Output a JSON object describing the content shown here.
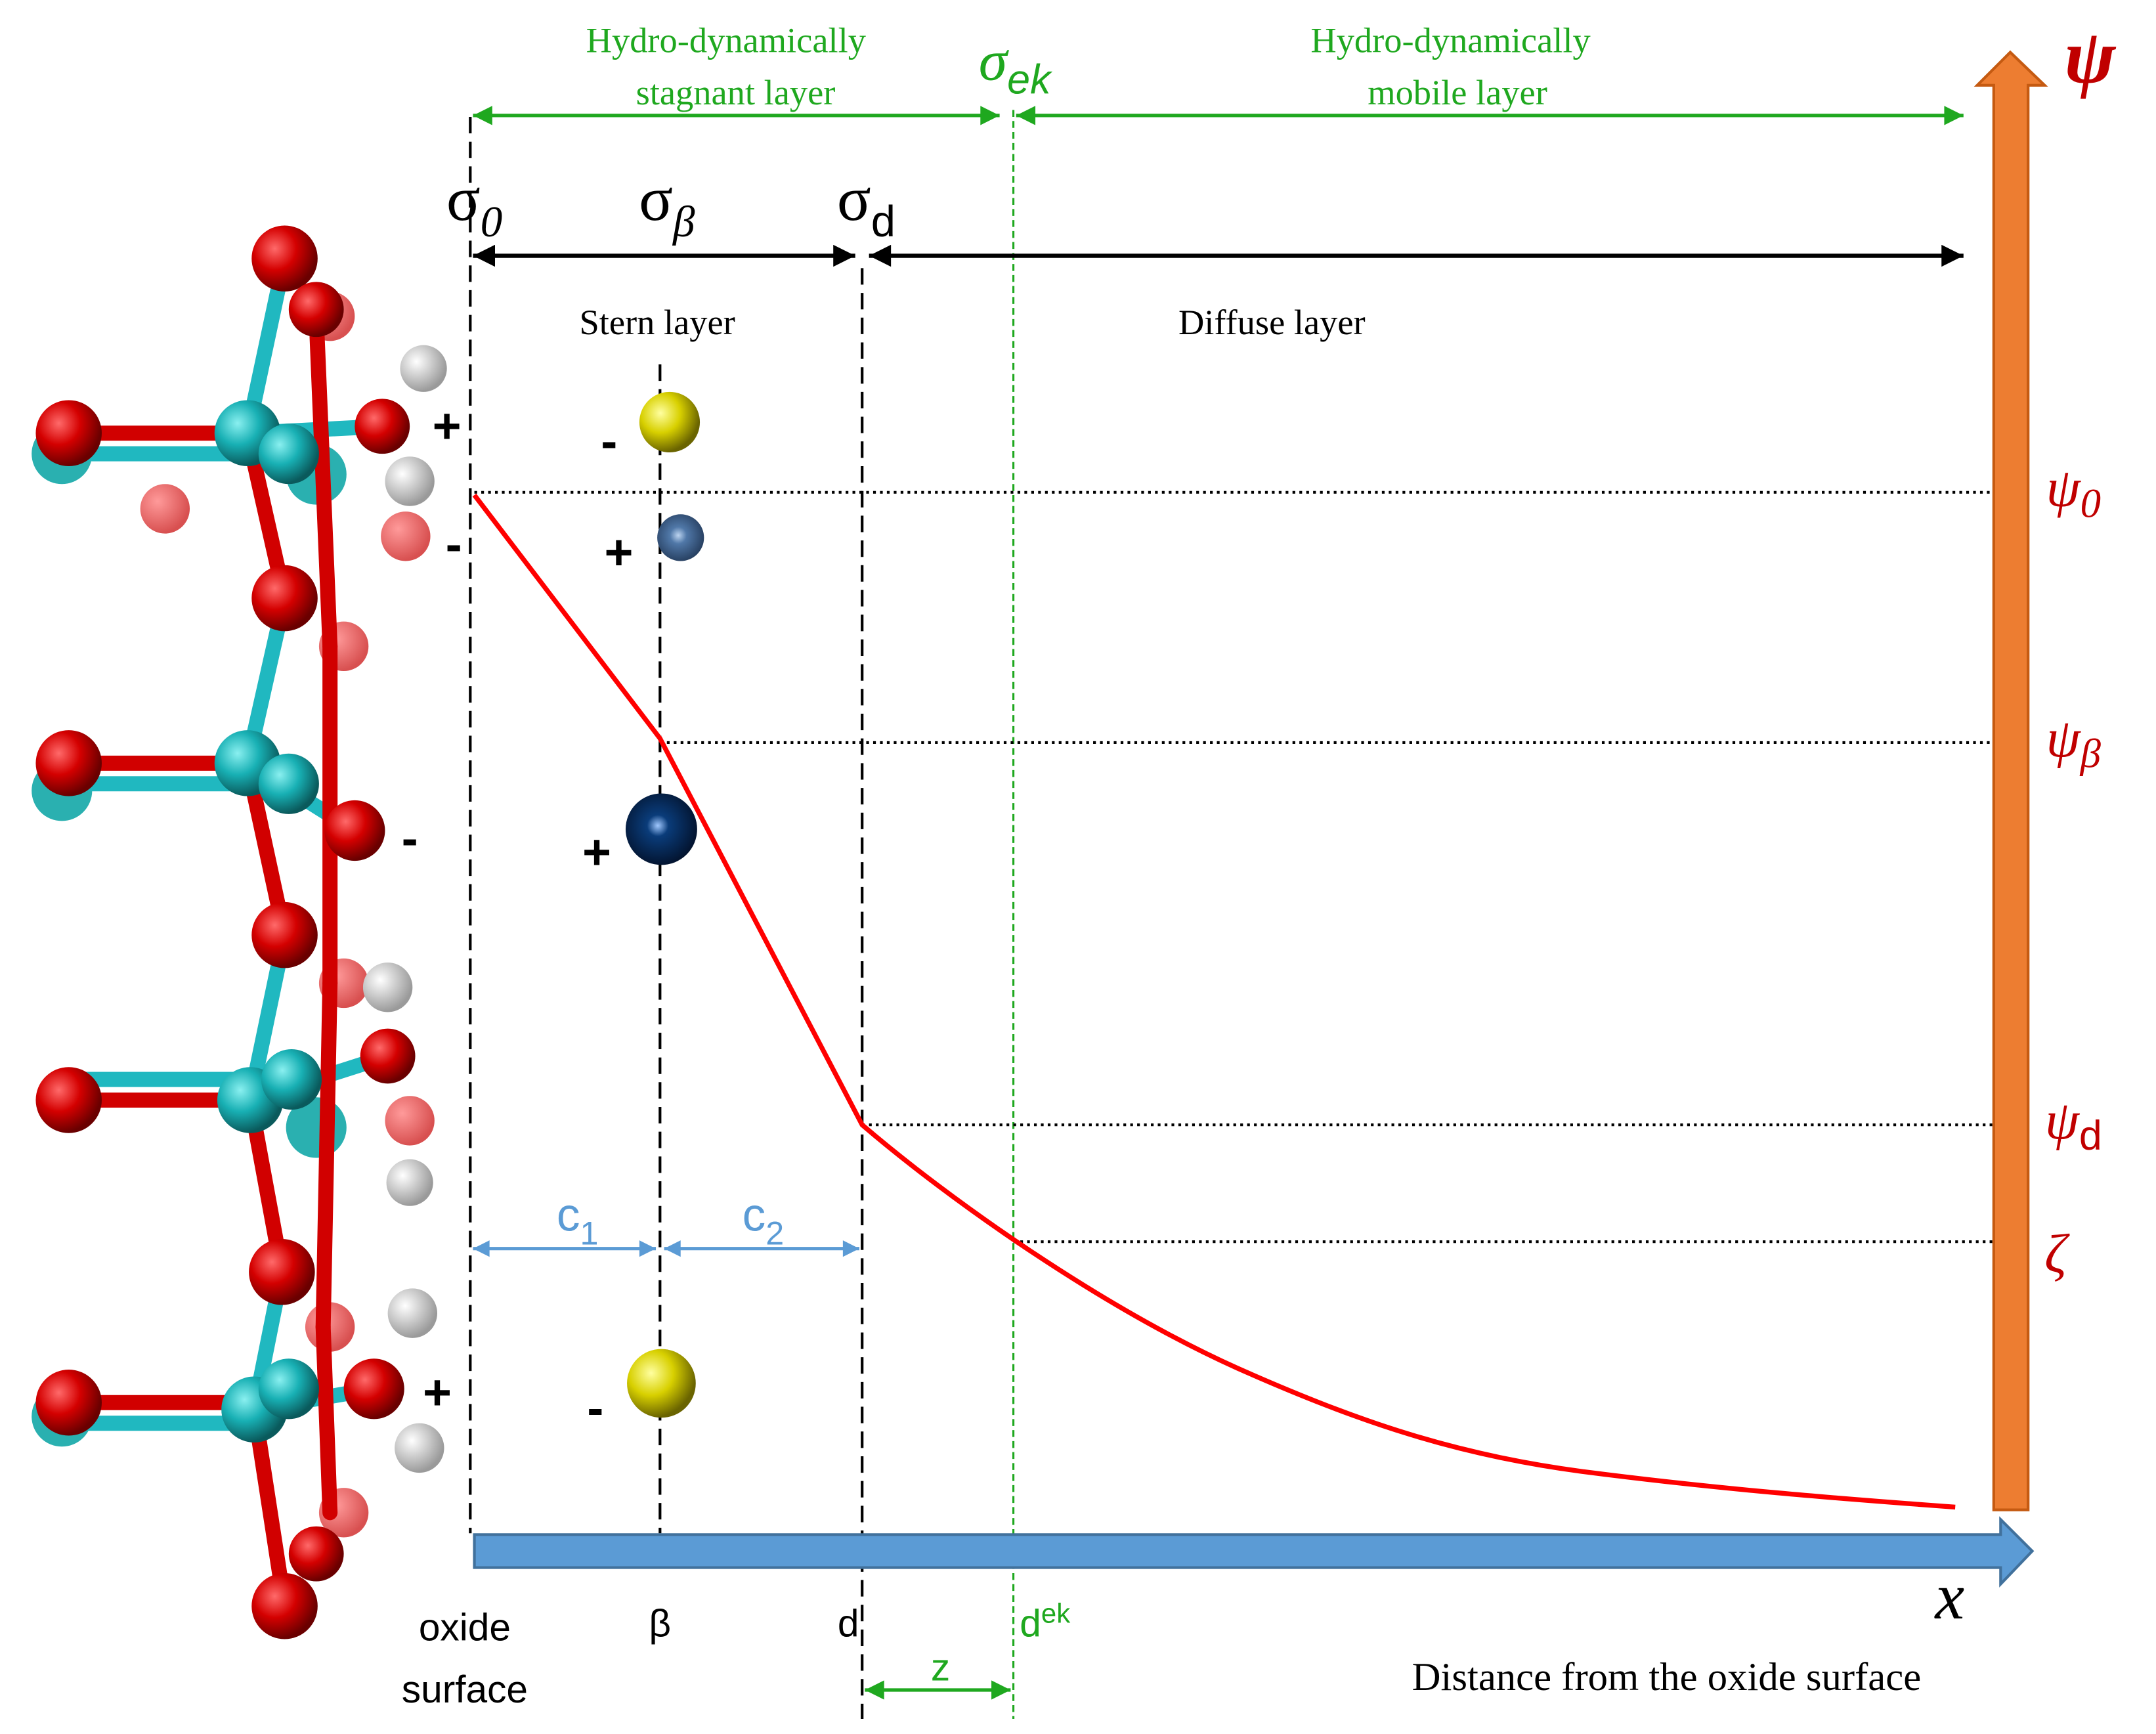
{
  "layers": {
    "stagnant": [
      "Hydro-dynamically",
      "stagnant layer"
    ],
    "mobile": [
      "Hydro-dynamically",
      "mobile layer"
    ],
    "stern": "Stern layer",
    "diffuse": "Diffuse layer"
  },
  "planes": {
    "sigma_ek": {
      "symbol": "σ",
      "subscript": "ek"
    },
    "sigma_0": {
      "symbol": "σ",
      "subscript": "0"
    },
    "sigma_beta": {
      "symbol": "σ",
      "subscript": "β"
    },
    "sigma_d": {
      "symbol": "σ",
      "subscript": "d"
    }
  },
  "charges": [
    "+",
    "-",
    "-",
    "+",
    "-",
    "+",
    "+",
    "-"
  ],
  "potential": {
    "axis": "ψ",
    "psi_0": {
      "symbol": "ψ",
      "subscript": "0"
    },
    "psi_beta": {
      "symbol": "ψ",
      "subscript": "β"
    },
    "psi_d": {
      "symbol": "ψ",
      "subscript": "d"
    },
    "zeta": "ζ"
  },
  "capacitances": {
    "c1": {
      "symbol": "c",
      "subscript": "1"
    },
    "c2": {
      "symbol": "c",
      "subscript": "2"
    }
  },
  "positions": {
    "oxide_surface": [
      "oxide",
      "surface"
    ],
    "beta": "β",
    "d": "d",
    "d_ek": {
      "symbol": "d",
      "superscript": "ek"
    },
    "z": "z"
  },
  "x_axis": {
    "symbol": "x",
    "label": "Distance from the oxide surface"
  }
}
